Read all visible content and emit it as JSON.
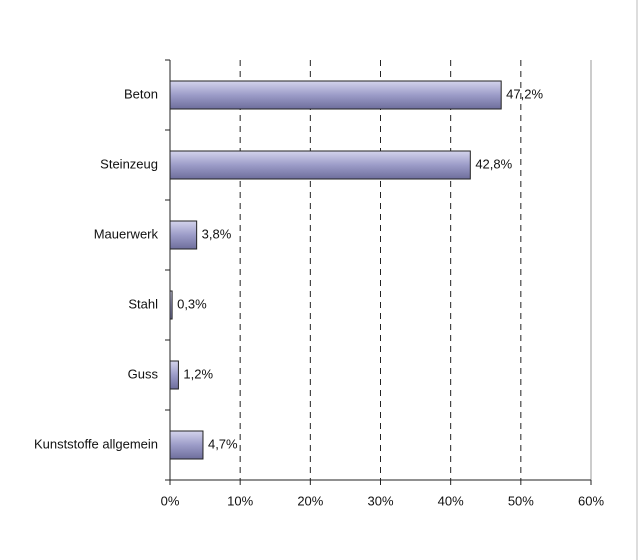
{
  "chart_data": {
    "type": "bar",
    "orientation": "horizontal",
    "categories": [
      "Beton",
      "Steinzeug",
      "Mauerwerk",
      "Stahl",
      "Guss",
      "Kunststoffe allgemein"
    ],
    "values": [
      47.2,
      42.8,
      3.8,
      0.3,
      1.2,
      4.7
    ],
    "value_labels": [
      "47,2%",
      "42,8%",
      "3,8%",
      "0,3%",
      "1,2%",
      "4,7%"
    ],
    "color": "#9c9cc8",
    "xlim": [
      0,
      60
    ],
    "xticks": [
      {
        "value": 0,
        "label": "0%"
      },
      {
        "value": 10,
        "label": "10%"
      },
      {
        "value": 20,
        "label": "20%"
      },
      {
        "value": 30,
        "label": "30%"
      },
      {
        "value": 40,
        "label": "40%"
      },
      {
        "value": 50,
        "label": "50%"
      },
      {
        "value": 60,
        "label": "60%"
      }
    ],
    "grid": true
  }
}
